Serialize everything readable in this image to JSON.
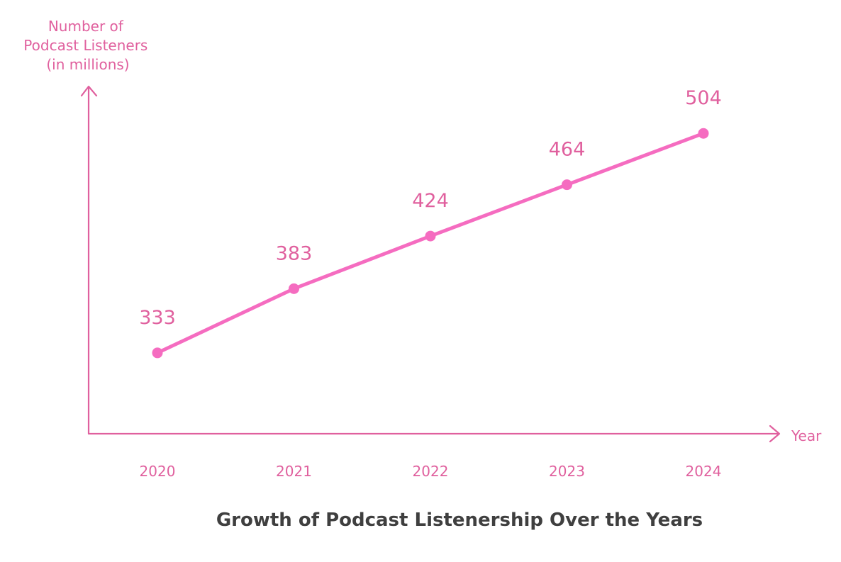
{
  "chart_data": {
    "type": "line",
    "title": "Growth of Podcast Listenership Over the Years",
    "xlabel": "Year",
    "ylabel": "Number of Podcast Listeners (in millions)",
    "ylabel_lines": [
      "Number of",
      "Podcast Listeners",
      "(in millions)"
    ],
    "categories": [
      "2020",
      "2021",
      "2022",
      "2023",
      "2024"
    ],
    "series": [
      {
        "values": [
          333,
          383,
          424,
          464,
          504
        ]
      }
    ],
    "ylim": [
      270,
      540
    ],
    "grid": false,
    "legend": "none",
    "colors": {
      "line": "#f56cc0",
      "axis": "#e0609e",
      "text": "#e0609e",
      "title": "#3f3f3f"
    }
  }
}
